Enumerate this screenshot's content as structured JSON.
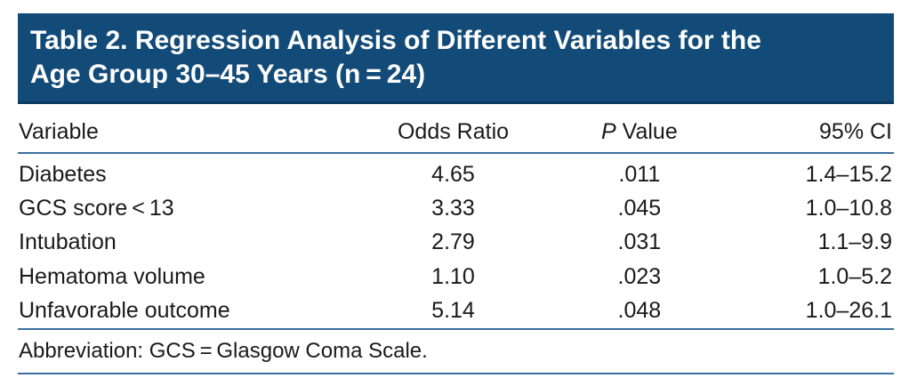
{
  "table": {
    "title_line1": "Table 2. Regression Analysis of Different Variables for the",
    "title_line2": "Age Group 30–45 Years (n = 24)",
    "headers": {
      "variable": "Variable",
      "odds_ratio": "Odds Ratio",
      "p_value_italic": "P",
      "p_value_rest": " Value",
      "ci": "95% CI"
    },
    "rows": [
      {
        "variable": "Diabetes",
        "odds_ratio": "4.65",
        "p_value": ".011",
        "ci": "1.4–15.2"
      },
      {
        "variable": "GCS score < 13",
        "odds_ratio": "3.33",
        "p_value": ".045",
        "ci": "1.0–10.8"
      },
      {
        "variable": "Intubation",
        "odds_ratio": "2.79",
        "p_value": ".031",
        "ci": "1.1–9.9"
      },
      {
        "variable": "Hematoma volume",
        "odds_ratio": "1.10",
        "p_value": ".023",
        "ci": "1.0–5.2"
      },
      {
        "variable": "Unfavorable outcome",
        "odds_ratio": "5.14",
        "p_value": ".048",
        "ci": "1.0–26.1"
      }
    ],
    "footnote": "Abbreviation: GCS = Glasgow Coma Scale.",
    "colors": {
      "title_background": "#124a78",
      "title_text": "#ffffff",
      "rule": "#3a6ea0"
    }
  }
}
